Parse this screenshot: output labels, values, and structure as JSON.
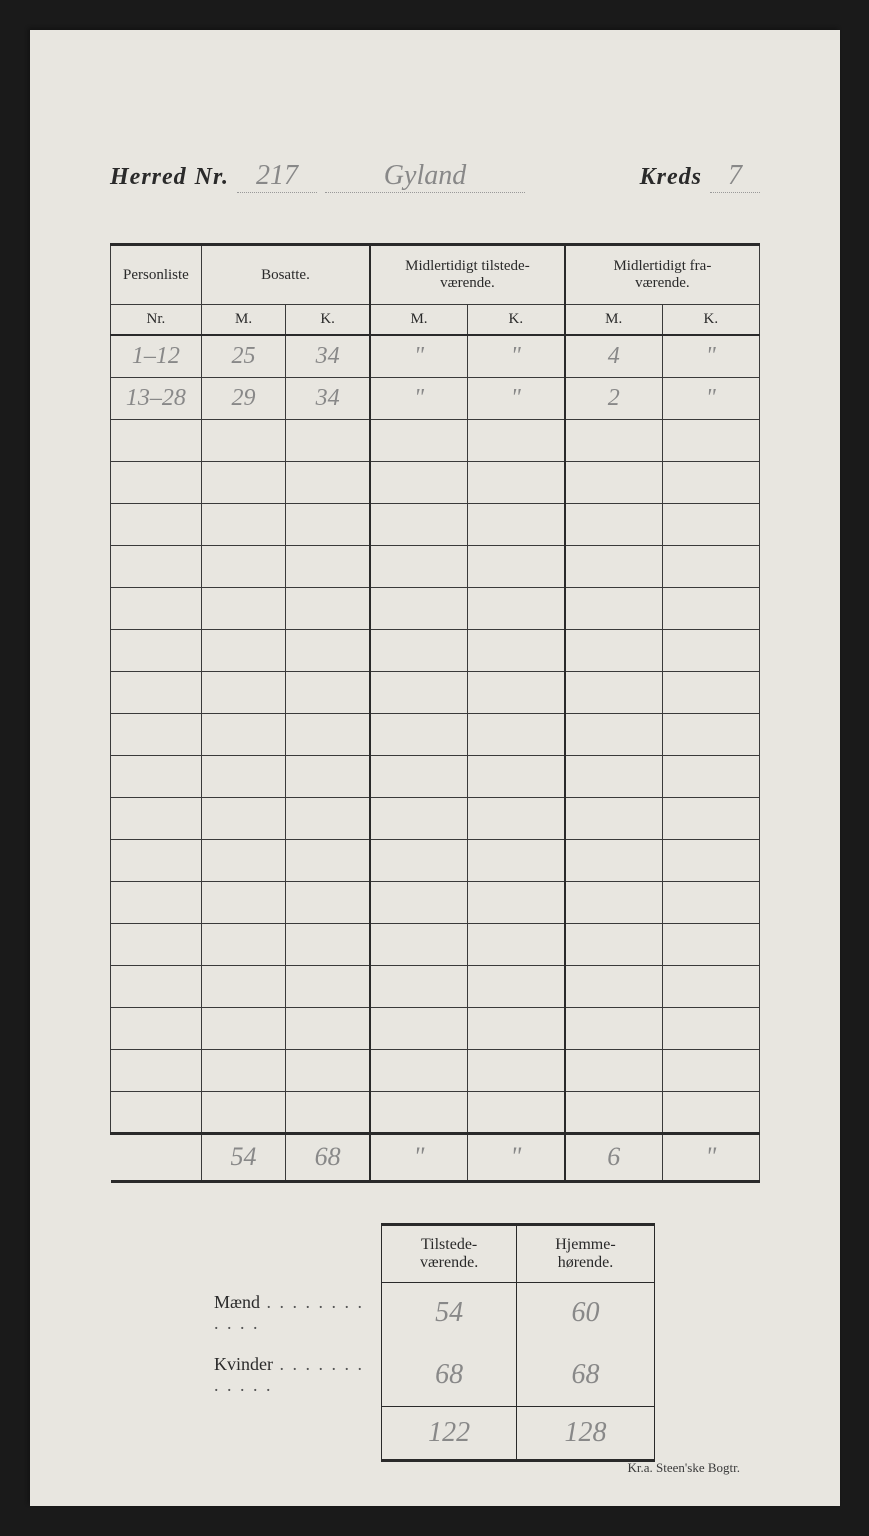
{
  "header": {
    "herred_label": "Herred",
    "nr_label": "Nr.",
    "herred_nr": "217",
    "herred_name": "Gyland",
    "kreds_label": "Kreds",
    "kreds_nr": "7"
  },
  "main_table": {
    "headers": {
      "personliste": "Personliste",
      "bosatte": "Bosatte.",
      "midl_tilstede": "Midlertidigt tilstede-\nværende.",
      "midl_fra": "Midlertidigt fra-\nværende.",
      "nr": "Nr.",
      "m": "M.",
      "k": "K."
    },
    "rows": [
      {
        "nr": "1–12",
        "bm": "25",
        "bk": "34",
        "tm": "\"",
        "tk": "\"",
        "fm": "4",
        "fk": "\""
      },
      {
        "nr": "13–28",
        "bm": "29",
        "bk": "34",
        "tm": "\"",
        "tk": "\"",
        "fm": "2",
        "fk": "\""
      }
    ],
    "empty_row_count": 17,
    "totals": {
      "nr": "",
      "bm": "54",
      "bk": "68",
      "tm": "\"",
      "tk": "\"",
      "fm": "6",
      "fk": "\""
    }
  },
  "summary": {
    "headers": {
      "tilstede": "Tilstede-\nværende.",
      "hjemme": "Hjemme-\nhørende."
    },
    "maend_label": "Mænd",
    "kvinder_label": "Kvinder",
    "maend": {
      "tilstede": "54",
      "hjemme": "60"
    },
    "kvinder": {
      "tilstede": "68",
      "hjemme": "68"
    },
    "totals": {
      "tilstede": "122",
      "hjemme": "128"
    }
  },
  "footer": "Kr.a.  Steen'ske Bogtr.",
  "colors": {
    "page_bg": "#e8e6e0",
    "outer_bg": "#1a1a1a",
    "ink": "#2a2a2a",
    "pencil": "#888888"
  }
}
